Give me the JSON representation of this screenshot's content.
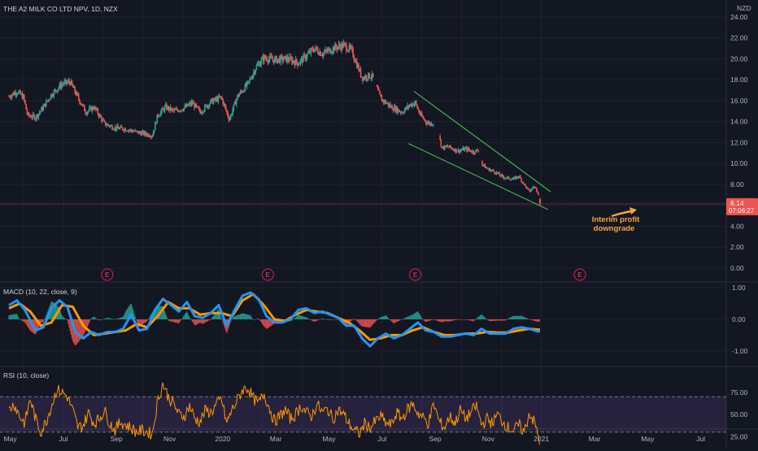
{
  "header": {
    "symbol_title": "THE A2 MILK CO LTD NPV, 1D, NZX",
    "currency": "NZD"
  },
  "colors": {
    "background": "#131722",
    "up": "#26a69a",
    "down": "#ef5350",
    "macd_line": "#2196f3",
    "signal_line": "#ff9800",
    "rsi_line": "#ff9800",
    "rsi_band": "#7e57c2",
    "channel": "#4caf50",
    "annotation": "#f7a541",
    "text": "#b2b5be",
    "grid": "#1e222d"
  },
  "chart_data": [
    {
      "type": "candlestick",
      "panel": "price",
      "yticks": [
        "24.00",
        "22.00",
        "20.00",
        "18.00",
        "16.00",
        "14.00",
        "12.00",
        "10.00",
        "8.00",
        "6.00",
        "4.00",
        "2.00",
        "0.00"
      ],
      "ylim": [
        0,
        24
      ],
      "x_labels": [
        "May",
        "Jul",
        "Sep",
        "Nov",
        "2020",
        "Mar",
        "May",
        "Jul",
        "Sep",
        "Nov",
        "2021",
        "Mar",
        "May",
        "Jul"
      ],
      "price_path": [
        [
          0,
          16.4
        ],
        [
          0.3,
          16.9
        ],
        [
          0.55,
          16.3
        ],
        [
          0.7,
          14.6
        ],
        [
          1.0,
          14.4
        ],
        [
          1.3,
          15.4
        ],
        [
          1.6,
          16.6
        ],
        [
          2.0,
          17.6
        ],
        [
          2.3,
          17.8
        ],
        [
          2.6,
          16.3
        ],
        [
          2.9,
          14.9
        ],
        [
          3.2,
          15.4
        ],
        [
          3.6,
          13.8
        ],
        [
          4.0,
          13.4
        ],
        [
          4.4,
          13.3
        ],
        [
          4.8,
          13.0
        ],
        [
          5.2,
          12.8
        ],
        [
          5.4,
          12.7
        ],
        [
          5.6,
          14.6
        ],
        [
          5.9,
          15.4
        ],
        [
          6.2,
          15.0
        ],
        [
          6.6,
          15.3
        ],
        [
          6.9,
          15.8
        ],
        [
          7.2,
          14.9
        ],
        [
          7.6,
          15.9
        ],
        [
          8.0,
          16.3
        ],
        [
          8.3,
          14.2
        ],
        [
          8.6,
          16.4
        ],
        [
          9.0,
          17.6
        ],
        [
          9.3,
          19.2
        ],
        [
          9.6,
          20.1
        ],
        [
          10.0,
          19.9
        ],
        [
          10.5,
          20.0
        ],
        [
          10.9,
          19.6
        ],
        [
          11.2,
          20.3
        ],
        [
          11.5,
          21.0
        ],
        [
          11.8,
          20.5
        ],
        [
          12.3,
          21.1
        ],
        [
          12.6,
          21.3
        ],
        [
          12.9,
          20.8
        ],
        [
          13.1,
          19.5
        ],
        [
          13.3,
          18.2
        ],
        [
          13.6,
          18.4
        ],
        [
          13.75,
          18.2
        ],
        [
          13.85,
          17.2
        ],
        [
          14.0,
          16.2
        ],
        [
          14.4,
          15.4
        ],
        [
          14.8,
          14.9
        ],
        [
          15.1,
          15.6
        ],
        [
          15.3,
          15.8
        ],
        [
          15.5,
          14.6
        ],
        [
          15.7,
          14.0
        ],
        [
          15.85,
          13.8
        ],
        [
          16.0,
          13.9
        ],
        [
          16.2,
          12.6
        ],
        [
          16.3,
          11.5
        ],
        [
          16.55,
          11.6
        ],
        [
          16.9,
          11.2
        ],
        [
          17.2,
          11.4
        ],
        [
          17.5,
          11.1
        ],
        [
          17.7,
          11.3
        ],
        [
          17.8,
          10.0
        ],
        [
          18.0,
          9.5
        ],
        [
          18.3,
          9.2
        ],
        [
          18.6,
          8.7
        ],
        [
          19.0,
          8.5
        ],
        [
          19.2,
          8.8
        ],
        [
          19.4,
          8.0
        ],
        [
          19.6,
          7.3
        ],
        [
          19.75,
          7.8
        ],
        [
          19.85,
          7.6
        ],
        [
          19.95,
          7.1
        ],
        [
          20.0,
          6.3
        ]
      ],
      "channel_upper": [
        [
          15.25,
          16.9
        ],
        [
          20.4,
          7.3
        ]
      ],
      "channel_lower": [
        [
          15.05,
          11.9
        ],
        [
          20.3,
          5.6
        ]
      ],
      "last_price": "6.14",
      "countdown": "07:06:27",
      "earnings_marker": "E",
      "annotation": {
        "line1": "Interim profit",
        "line2": "downgrade"
      }
    },
    {
      "type": "line",
      "panel": "macd",
      "label": "MACD (10, 22, close, 9)",
      "yticks": [
        "1.00",
        "0.00",
        "-1.00"
      ],
      "ylim": [
        -1.0,
        1.0
      ],
      "series": [
        {
          "name": "MACD",
          "x": [
            0,
            0.3,
            0.6,
            1.0,
            1.3,
            1.6,
            1.9,
            2.2,
            2.5,
            2.8,
            3.1,
            3.4,
            3.7,
            4.0,
            4.3,
            4.6,
            4.9,
            5.2,
            5.5,
            5.8,
            6.1,
            6.4,
            6.7,
            7.0,
            7.3,
            7.6,
            7.9,
            8.2,
            8.5,
            8.8,
            9.1,
            9.4,
            9.7,
            10.0,
            10.3,
            10.6,
            10.9,
            11.2,
            11.5,
            11.8,
            12.1,
            12.4,
            12.7,
            13.0,
            13.3,
            13.6,
            13.9,
            14.2,
            14.5,
            14.8,
            15.1,
            15.4,
            15.7,
            16.0,
            16.3,
            16.6,
            16.9,
            17.2,
            17.5,
            17.8,
            18.1,
            18.4,
            18.7,
            19.0,
            19.3,
            19.6,
            19.9,
            20.0
          ],
          "values": [
            0.45,
            0.6,
            0.3,
            -0.35,
            -0.25,
            0.35,
            0.6,
            0.4,
            -0.4,
            -0.6,
            -0.4,
            -0.5,
            -0.4,
            -0.4,
            -0.3,
            0.15,
            -0.35,
            -0.3,
            0.3,
            0.65,
            0.45,
            0.25,
            0.55,
            0.1,
            0.05,
            0.2,
            0.45,
            -0.2,
            0.3,
            0.75,
            0.85,
            0.65,
            0.1,
            -0.1,
            -0.1,
            0.0,
            0.3,
            0.35,
            0.2,
            0.25,
            0.15,
            0.05,
            -0.2,
            -0.2,
            -0.6,
            -0.85,
            -0.6,
            -0.45,
            -0.6,
            -0.5,
            -0.3,
            -0.1,
            -0.35,
            -0.4,
            -0.55,
            -0.55,
            -0.5,
            -0.45,
            -0.5,
            -0.3,
            -0.45,
            -0.45,
            -0.45,
            -0.3,
            -0.25,
            -0.3,
            -0.38,
            -0.38
          ]
        },
        {
          "name": "Signal",
          "x": [
            0,
            0.4,
            0.8,
            1.2,
            1.6,
            2.0,
            2.4,
            2.8,
            3.2,
            3.6,
            4.0,
            4.4,
            4.8,
            5.2,
            5.6,
            6.0,
            6.4,
            6.8,
            7.2,
            7.6,
            8.0,
            8.4,
            8.8,
            9.2,
            9.6,
            10.0,
            10.4,
            10.8,
            11.2,
            11.6,
            12.0,
            12.4,
            12.8,
            13.2,
            13.6,
            14.0,
            14.4,
            14.8,
            15.2,
            15.6,
            16.0,
            16.4,
            16.8,
            17.2,
            17.6,
            18.0,
            18.4,
            18.8,
            19.2,
            19.6,
            20.0
          ],
          "values": [
            0.35,
            0.5,
            0.25,
            -0.2,
            -0.1,
            0.45,
            0.4,
            -0.2,
            -0.5,
            -0.45,
            -0.4,
            -0.35,
            -0.15,
            -0.25,
            0.1,
            0.55,
            0.35,
            0.35,
            0.15,
            0.2,
            0.2,
            0.1,
            0.6,
            0.8,
            0.45,
            0.0,
            -0.05,
            0.15,
            0.3,
            0.25,
            0.2,
            0.05,
            -0.1,
            -0.35,
            -0.65,
            -0.6,
            -0.5,
            -0.5,
            -0.35,
            -0.25,
            -0.4,
            -0.5,
            -0.5,
            -0.45,
            -0.45,
            -0.4,
            -0.42,
            -0.42,
            -0.35,
            -0.3,
            -0.33
          ]
        }
      ]
    },
    {
      "type": "line",
      "panel": "rsi",
      "label": "RSI (10, close)",
      "yticks": [
        "75.00",
        "50.00",
        "25.00"
      ],
      "ylim": [
        12,
        90
      ],
      "band": [
        30,
        70
      ],
      "series": [
        {
          "name": "RSI",
          "x": [
            0,
            0.2,
            0.4,
            0.6,
            0.8,
            1.0,
            1.2,
            1.4,
            1.6,
            1.8,
            2.0,
            2.2,
            2.4,
            2.6,
            2.8,
            3.0,
            3.2,
            3.4,
            3.6,
            3.8,
            4.0,
            4.2,
            4.4,
            4.6,
            4.8,
            5.0,
            5.2,
            5.4,
            5.6,
            5.8,
            6.0,
            6.2,
            6.4,
            6.6,
            6.8,
            7.0,
            7.2,
            7.4,
            7.6,
            7.8,
            8.0,
            8.2,
            8.4,
            8.6,
            8.8,
            9.0,
            9.2,
            9.4,
            9.6,
            9.8,
            10.0,
            10.2,
            10.4,
            10.6,
            10.8,
            11.0,
            11.2,
            11.4,
            11.6,
            11.8,
            12.0,
            12.2,
            12.4,
            12.6,
            12.8,
            13.0,
            13.2,
            13.4,
            13.6,
            13.8,
            14.0,
            14.2,
            14.4,
            14.6,
            14.8,
            15.0,
            15.2,
            15.4,
            15.6,
            15.8,
            16.0,
            16.2,
            16.4,
            16.6,
            16.8,
            17.0,
            17.2,
            17.4,
            17.6,
            17.8,
            18.0,
            18.2,
            18.4,
            18.6,
            18.8,
            19.0,
            19.2,
            19.4,
            19.6,
            19.8,
            20.0
          ],
          "values": [
            55,
            62,
            48,
            40,
            68,
            45,
            30,
            42,
            60,
            78,
            75,
            70,
            55,
            35,
            38,
            52,
            40,
            45,
            55,
            40,
            32,
            42,
            38,
            35,
            30,
            32,
            30,
            28,
            65,
            85,
            70,
            62,
            50,
            48,
            60,
            45,
            42,
            55,
            52,
            60,
            68,
            40,
            55,
            66,
            78,
            80,
            68,
            62,
            74,
            58,
            42,
            48,
            55,
            45,
            50,
            60,
            52,
            48,
            62,
            52,
            56,
            45,
            55,
            50,
            40,
            32,
            28,
            40,
            35,
            42,
            48,
            40,
            38,
            52,
            45,
            55,
            62,
            52,
            46,
            40,
            62,
            42,
            35,
            48,
            40,
            55,
            45,
            52,
            60,
            38,
            45,
            40,
            50,
            42,
            35,
            32,
            38,
            30,
            52,
            40,
            18
          ]
        }
      ]
    }
  ]
}
